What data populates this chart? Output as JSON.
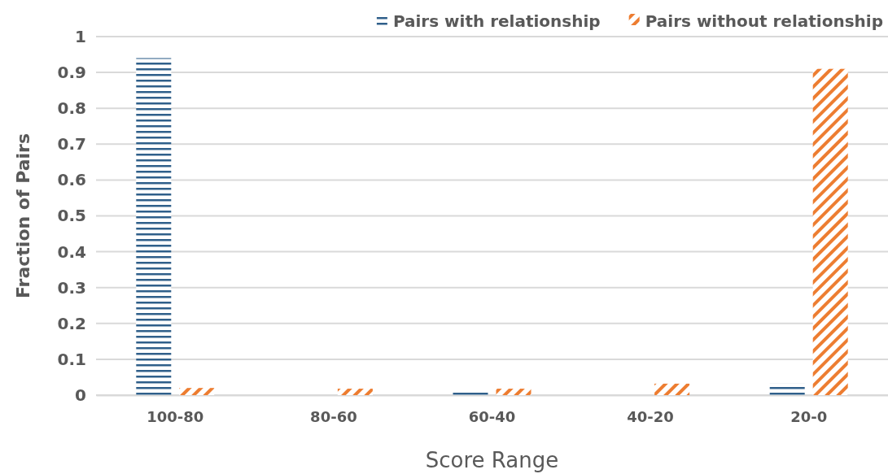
{
  "chart_data": {
    "type": "bar",
    "xlabel": "Score Range",
    "ylabel": "Fraction of Pairs",
    "categories": [
      "100-80",
      "80-60",
      "60-40",
      "40-20",
      "20-0"
    ],
    "series": [
      {
        "name": "Pairs with relationship",
        "color": "#2f5f8a",
        "values": [
          0.94,
          0,
          0.014,
          0,
          0.032
        ]
      },
      {
        "name": "Pairs without relationship",
        "color": "#ed7d31",
        "values": [
          0.02,
          0.018,
          0.018,
          0.032,
          0.91
        ]
      }
    ],
    "ylim": [
      0,
      1
    ],
    "yticks": [
      0,
      0.1,
      0.2,
      0.3,
      0.4,
      0.5,
      0.6,
      0.7,
      0.8,
      0.9,
      1
    ],
    "grid": "y",
    "legend": "top right"
  }
}
